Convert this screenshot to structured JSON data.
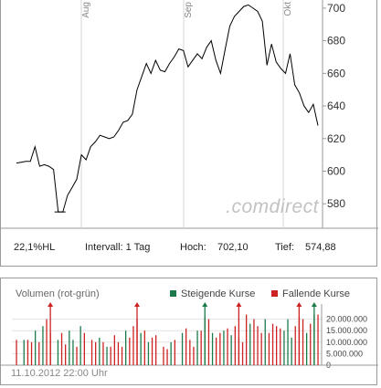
{
  "chart_data": [
    {
      "type": "line",
      "title": "",
      "xlabel": "",
      "ylabel": "",
      "ylim": [
        565,
        705
      ],
      "yticks": [
        580,
        600,
        620,
        640,
        660,
        680,
        700
      ],
      "month_labels": [
        "Aug",
        "Sep",
        "Okt"
      ],
      "grid": true,
      "watermark": "comdirect",
      "line_color": "#000000",
      "series": [
        {
          "values": [
            605,
            605.5,
            606,
            606,
            615,
            603,
            604,
            603,
            601,
            575,
            575,
            585,
            590,
            595,
            610,
            607,
            615,
            618,
            622,
            621,
            620,
            621,
            625,
            630,
            631,
            635,
            650,
            658,
            666,
            660,
            668,
            662,
            661,
            666,
            670,
            675,
            674,
            664,
            668,
            672,
            669,
            676,
            680,
            668,
            660,
            675,
            689,
            695,
            698,
            701,
            702,
            700,
            698,
            692,
            665,
            678,
            667,
            663,
            660,
            672,
            653,
            648,
            640,
            636,
            641,
            628
          ]
        }
      ]
    },
    {
      "type": "bar",
      "title": "Volumen (rot-grün)",
      "ylim": [
        0,
        25000000
      ],
      "ytick_labels": [
        "20.000.000",
        "15.000.000",
        "10.000.000",
        "5.000.000",
        "0"
      ],
      "ytick_values": [
        20000000,
        15000000,
        10000000,
        5000000,
        0
      ],
      "legend": [
        "Steigende Kurse",
        "Fallende Kurse"
      ],
      "legend_position": "top-right",
      "colors": {
        "up": "#1a7a4a",
        "down": "#cc2222"
      },
      "values": [
        11,
        0,
        11,
        11,
        10,
        15,
        10,
        17,
        20,
        14,
        0,
        11,
        14,
        9,
        15,
        11,
        8,
        17,
        14,
        0,
        11,
        10,
        12,
        10,
        8,
        8,
        13,
        10,
        8,
        15,
        12,
        17,
        20,
        14,
        15,
        10,
        12,
        13,
        0,
        8,
        7,
        10,
        11,
        0,
        14,
        16,
        11,
        8,
        15,
        15,
        21,
        20,
        14,
        12,
        14,
        15,
        16,
        13,
        17,
        12,
        10,
        22,
        18,
        20,
        17,
        14,
        20,
        14,
        18,
        17,
        16,
        15,
        20,
        12,
        17,
        21,
        20,
        14,
        18,
        22,
        22
      ],
      "directions": [
        "d",
        "d",
        "u",
        "d",
        "d",
        "u",
        "d",
        "u",
        "d",
        "d",
        "d",
        "u",
        "d",
        "d",
        "u",
        "u",
        "d",
        "u",
        "d",
        "d",
        "d",
        "d",
        "u",
        "d",
        "u",
        "d",
        "d",
        "d",
        "d",
        "u",
        "d",
        "d",
        "d",
        "u",
        "d",
        "u",
        "d",
        "d",
        "d",
        "d",
        "d",
        "u",
        "d",
        "d",
        "u",
        "d",
        "d",
        "d",
        "u",
        "d",
        "u",
        "d",
        "u",
        "d",
        "d",
        "u",
        "d",
        "u",
        "d",
        "d",
        "d",
        "d",
        "u",
        "d",
        "d",
        "d",
        "u",
        "d",
        "d",
        "d",
        "d",
        "u",
        "u",
        "u",
        "d",
        "d",
        "d",
        "u",
        "d",
        "u",
        "d"
      ],
      "overflow_markers": [
        9,
        32,
        50,
        59,
        75,
        79
      ]
    }
  ],
  "stats": {
    "hl": "22,1%HL",
    "interval": "Intervall: 1 Tag",
    "high_label": "Hoch:",
    "high_value": "702,10",
    "low_label": "Tief:",
    "low_value": "574,88"
  },
  "legend_up": "Steigende Kurse",
  "legend_down": "Fallende Kurse",
  "volume_title": "Volumen (rot-grün)",
  "timestamp": "11.10.2012 22:00 Uhr"
}
